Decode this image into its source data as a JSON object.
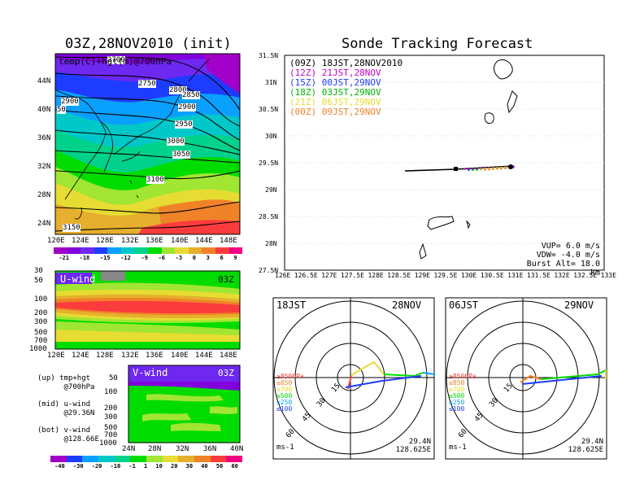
{
  "panel_left_title": "03Z,28NOV2010 (init)",
  "map_top": {
    "inner_label": "temp(C)+hgt(m)@700hPa",
    "lat_labels": [
      "44N",
      "40N",
      "36N",
      "32N",
      "28N",
      "24N"
    ],
    "lon_labels": [
      "120E",
      "124E",
      "128E",
      "132E",
      "136E",
      "140E",
      "144E",
      "148E"
    ],
    "contour_labels": [
      "2700",
      "2750",
      "2800",
      "2850",
      "2900",
      "2900",
      "2950",
      "3000",
      "3050",
      "3100",
      "3150",
      "2900",
      "50"
    ],
    "colorbar_labels": [
      "-21",
      "-18",
      "-15",
      "-12",
      "-9",
      "-6",
      "-3",
      "0",
      "3",
      "6",
      "9"
    ],
    "colorbar_colors": [
      "#a000c8",
      "#8200dc",
      "#6e28f0",
      "#1e3cff",
      "#0aa0ff",
      "#00c8c8",
      "#00d28c",
      "#00dc00",
      "#a0e632",
      "#e6dc32",
      "#e6af2d",
      "#f08228",
      "#fa3c3c",
      "#f00082"
    ]
  },
  "uwind": {
    "label": "U-wind",
    "time": "03Z",
    "y_labels": [
      "30",
      "50",
      "100",
      "200",
      "300",
      "500",
      "700",
      "1000"
    ],
    "x_labels": [
      "120E",
      "124E",
      "128E",
      "132E",
      "136E",
      "140E",
      "144E",
      "148E"
    ]
  },
  "vwind": {
    "label": "V-wind",
    "time": "03Z",
    "y_labels": [
      "50",
      "100",
      "200",
      "300",
      "500",
      "700",
      "1000"
    ],
    "x_labels": [
      "24N",
      "28N",
      "32N",
      "36N",
      "40N"
    ]
  },
  "legend_notes": [
    {
      "tag": "(up)",
      "line1": "tmp+hgt",
      "line2": "@700hPa"
    },
    {
      "tag": "(mid)",
      "line1": "u-wind",
      "line2": "@29.36N"
    },
    {
      "tag": "(bot)",
      "line1": "v-wind",
      "line2": "@128.66E"
    }
  ],
  "bottom_colorbar": {
    "labels": [
      "-40",
      "-30",
      "-20",
      "-10",
      "-1",
      "1",
      "10",
      "20",
      "30",
      "40",
      "50",
      "60"
    ],
    "colors": [
      "#a000c8",
      "#1e3cff",
      "#0aa0ff",
      "#00c8c8",
      "#00d28c",
      "#00dc00",
      "#a0e632",
      "#e6dc32",
      "#e6af2d",
      "#f08228",
      "#fa3c3c",
      "#f00082"
    ]
  },
  "track": {
    "title": "Sonde Tracking Forecast",
    "lat_labels": [
      "31.5N",
      "31N",
      "30.5N",
      "30N",
      "29.5N",
      "29N",
      "28.5N",
      "28N",
      "27.5N"
    ],
    "lon_labels": [
      "126E",
      "126.5E",
      "127E",
      "127.5E",
      "128E",
      "128.5E",
      "129E",
      "129.5E",
      "130E",
      "130.5E",
      "131E",
      "131.5E",
      "132E",
      "132.5E",
      "133E"
    ],
    "legend": [
      {
        "text": "(09Z) 18JST,28NOV2010",
        "color": "#000000"
      },
      {
        "text": "(12Z) 21JST,28NOV",
        "color": "#c800c8"
      },
      {
        "text": "(15Z) 00JST,29NOV",
        "color": "#1e3cff"
      },
      {
        "text": "(18Z) 03JST,29NOV",
        "color": "#00b400"
      },
      {
        "text": "(21Z) 06JST,29NOV",
        "color": "#e6dc32"
      },
      {
        "text": "(00Z) 09JST,29NOV",
        "color": "#f08228"
      }
    ],
    "params": [
      "VUP= 6.0 m/s",
      "VDW= -4.0 m/s",
      "Burst Alt= 18.0 km"
    ]
  },
  "hodo_left": {
    "time": "18JST",
    "date": "28NOV",
    "ring_labels": [
      "15",
      "30",
      "45",
      "60"
    ],
    "levels": [
      {
        "text": "≥850hPa",
        "color": "#fa3c3c"
      },
      {
        "text": "≤850",
        "color": "#f08228"
      },
      {
        "text": "≤700",
        "color": "#e6dc32"
      },
      {
        "text": "≤500",
        "color": "#00dc00"
      },
      {
        "text": "≤250",
        "color": "#0aa0ff"
      },
      {
        "text": "≤100",
        "color": "#1e3cff"
      }
    ],
    "unit": "ms-1",
    "lat": "29.4N",
    "lon": "128.625E"
  },
  "hodo_right": {
    "time": "06JST",
    "date": "29NOV",
    "ring_labels": [
      "15",
      "30",
      "45",
      "60"
    ],
    "unit": "ms-1",
    "lat": "29.4N",
    "lon": "128.625E"
  }
}
